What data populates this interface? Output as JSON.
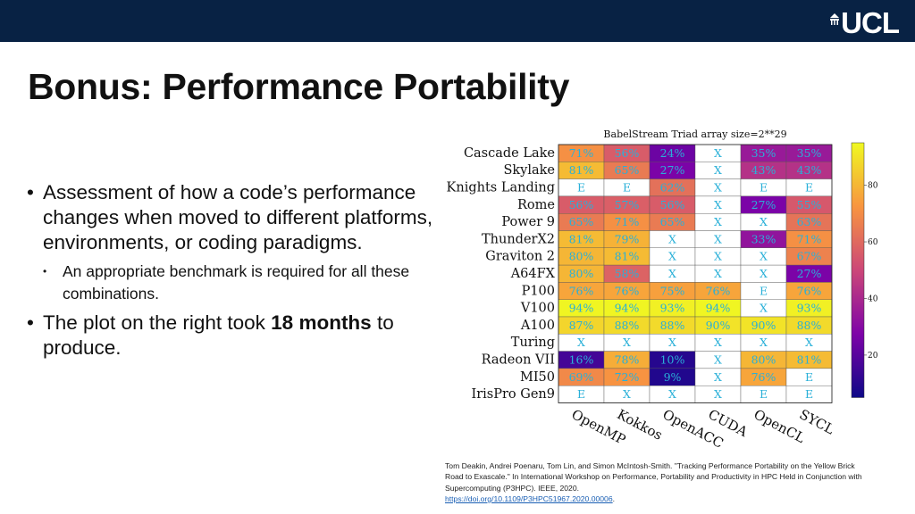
{
  "header": {
    "logo_text": "UCL",
    "bar_color": "#082244"
  },
  "slide": {
    "title": "Bonus: Performance Portability",
    "bullets": [
      {
        "text": "Assessment of how a code’s performance changes when moved to different platforms, environments, or coding paradigms."
      },
      {
        "text": "An appropriate benchmark is required for all these combinations."
      },
      {
        "text_before": "The plot on the right took ",
        "bold": "18 months",
        "text_after": " to produce."
      }
    ]
  },
  "chart_data": {
    "type": "heatmap",
    "title": "BabelStream Triad array size=2**29",
    "rows": [
      "Cascade Lake",
      "Skylake",
      "Knights Landing",
      "Rome",
      "Power 9",
      "ThunderX2",
      "Graviton 2",
      "A64FX",
      "P100",
      "V100",
      "A100",
      "Turing",
      "Radeon VII",
      "MI50",
      "IrisPro Gen9"
    ],
    "columns": [
      "OpenMP",
      "Kokkos",
      "OpenACC",
      "CUDA",
      "OpenCL",
      "SYCL"
    ],
    "cells": [
      [
        "71%",
        "56%",
        "24%",
        "X",
        "35%",
        "35%"
      ],
      [
        "81%",
        "65%",
        "27%",
        "X",
        "43%",
        "43%"
      ],
      [
        "E",
        "E",
        "62%",
        "X",
        "E",
        "E"
      ],
      [
        "56%",
        "57%",
        "56%",
        "X",
        "27%",
        "55%"
      ],
      [
        "65%",
        "71%",
        "65%",
        "X",
        "X",
        "63%"
      ],
      [
        "81%",
        "79%",
        "X",
        "X",
        "33%",
        "71%"
      ],
      [
        "80%",
        "81%",
        "X",
        "X",
        "X",
        "67%"
      ],
      [
        "80%",
        "58%",
        "X",
        "X",
        "X",
        "27%"
      ],
      [
        "76%",
        "76%",
        "75%",
        "76%",
        "E",
        "76%"
      ],
      [
        "94%",
        "94%",
        "93%",
        "94%",
        "X",
        "93%"
      ],
      [
        "87%",
        "88%",
        "88%",
        "90%",
        "90%",
        "88%"
      ],
      [
        "X",
        "X",
        "X",
        "X",
        "X",
        "X"
      ],
      [
        "16%",
        "78%",
        "10%",
        "X",
        "80%",
        "81%"
      ],
      [
        "69%",
        "72%",
        "9%",
        "X",
        "76%",
        "E"
      ],
      [
        "E",
        "X",
        "X",
        "X",
        "E",
        "E"
      ]
    ],
    "colorbar_ticks": [
      20,
      40,
      60,
      80
    ],
    "colorbar_range": [
      5,
      95
    ]
  },
  "citation": {
    "text": "Tom Deakin, Andrei Poenaru, Tom Lin, and Simon McIntosh-Smith. \"Tracking Performance Portability on the Yellow Brick Road to Exascale.\" In International Workshop on Performance, Portability and Productivity in HPC Held in Conjunction with Supercomputing (P3HPC). IEEE, 2020.",
    "link": "https://doi.org/10.1109/P3HPC51967.2020.00006",
    "link_suffix": "."
  }
}
